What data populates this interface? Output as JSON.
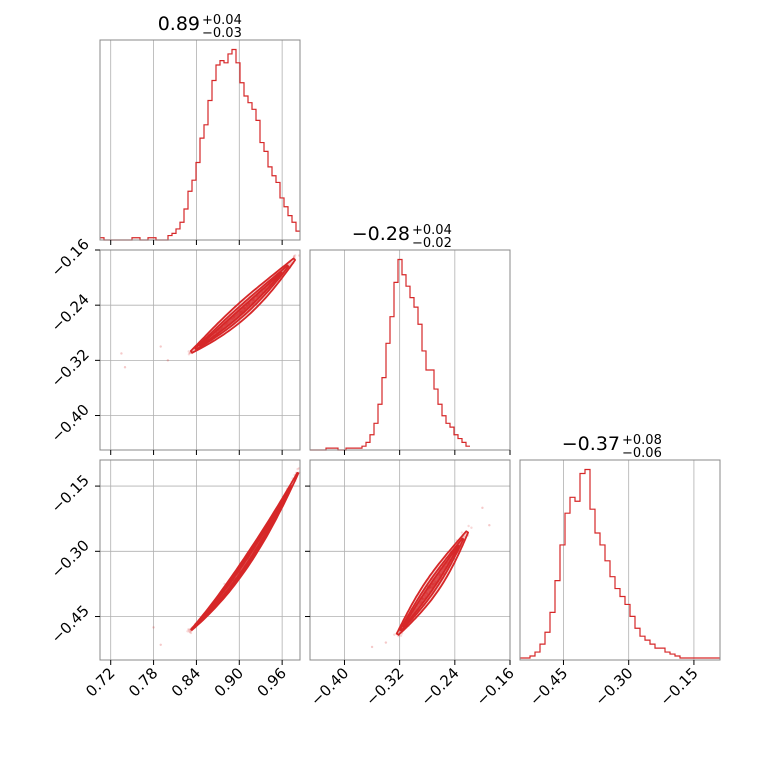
{
  "chart_data": {
    "type": "corner",
    "color": "#d62728",
    "parameters": [
      {
        "title": {
          "median": "0.89",
          "plus": "+0.04",
          "minus": "−0.03"
        },
        "range": [
          0.705,
          0.985
        ],
        "ticks": [
          {
            "value": 0.72,
            "label": "0.72"
          },
          {
            "value": 0.78,
            "label": "0.78"
          },
          {
            "value": 0.84,
            "label": "0.84"
          },
          {
            "value": 0.9,
            "label": "0.90"
          },
          {
            "value": 0.96,
            "label": "0.96"
          }
        ],
        "histogram": {
          "x0": 0.705,
          "bin_width": 0.0056,
          "counts": [
            1,
            0,
            0,
            0,
            0,
            0,
            0,
            0,
            1,
            1,
            0,
            0,
            1,
            1,
            0,
            0,
            0,
            2,
            3,
            5,
            8,
            14,
            22,
            27,
            35,
            46,
            52,
            63,
            72,
            79,
            81,
            80,
            84,
            86,
            80,
            71,
            65,
            62,
            59,
            54,
            44,
            40,
            33,
            29,
            26,
            19,
            15,
            11,
            8,
            4
          ]
        }
      },
      {
        "title": {
          "median": "−0.28",
          "plus": "+0.04",
          "minus": "−0.02"
        },
        "range": [
          -0.45,
          -0.16
        ],
        "ticks": [
          {
            "value": -0.4,
            "label": "−0.40"
          },
          {
            "value": -0.32,
            "label": "−0.32"
          },
          {
            "value": -0.24,
            "label": "−0.24"
          },
          {
            "value": -0.16,
            "label": "−0.16"
          }
        ],
        "histogram": {
          "x0": -0.45,
          "bin_width": 0.0058,
          "counts": [
            0,
            0,
            0,
            0,
            1,
            1,
            1,
            0,
            0,
            1,
            1,
            1,
            1,
            2,
            4,
            8,
            14,
            24,
            38,
            56,
            70,
            88,
            100,
            92,
            86,
            80,
            75,
            66,
            52,
            42,
            42,
            32,
            24,
            18,
            14,
            12,
            8,
            6,
            4,
            2
          ]
        }
      },
      {
        "title": {
          "median": "−0.37",
          "plus": "+0.08",
          "minus": "−0.06"
        },
        "range": [
          -0.55,
          -0.09
        ],
        "ticks": [
          {
            "value": -0.45,
            "label": "−0.45"
          },
          {
            "value": -0.3,
            "label": "−0.30"
          },
          {
            "value": -0.15,
            "label": "−0.15"
          }
        ],
        "histogram": {
          "x0": -0.55,
          "bin_width": 0.0115,
          "counts": [
            1,
            1,
            2,
            4,
            8,
            14,
            24,
            40,
            58,
            74,
            82,
            80,
            94,
            96,
            76,
            64,
            58,
            50,
            42,
            36,
            32,
            28,
            22,
            16,
            12,
            10,
            8,
            6,
            6,
            4,
            3,
            2,
            1,
            1,
            1,
            1,
            1,
            1,
            1,
            1
          ]
        }
      }
    ],
    "pairs": [
      {
        "x_param": 0,
        "y_param": 1,
        "relation": {
          "x": [
            0.83,
            0.98
          ],
          "y": [
            -0.31,
            -0.17
          ],
          "curvature": 0.2
        },
        "contour_widths": [
          0.022,
          0.014,
          0.007
        ],
        "outliers": [
          {
            "x": 0.735,
            "y": -0.31
          },
          {
            "x": 0.74,
            "y": -0.33
          },
          {
            "x": 0.79,
            "y": -0.3
          },
          {
            "x": 0.8,
            "y": -0.32
          }
        ]
      },
      {
        "x_param": 0,
        "y_param": 2,
        "relation": {
          "x": [
            0.83,
            0.985
          ],
          "y": [
            -0.485,
            -0.11
          ],
          "curvature": 0.35
        },
        "contour_widths": [
          0.018,
          0.012,
          0.006
        ],
        "outliers": [
          {
            "x": 0.79,
            "y": -0.515
          },
          {
            "x": 0.78,
            "y": -0.475
          }
        ]
      },
      {
        "x_param": 1,
        "y_param": 2,
        "relation": {
          "x": [
            -0.325,
            -0.22
          ],
          "y": [
            -0.495,
            -0.25
          ],
          "curvature": 0.1
        },
        "contour_widths": [
          0.035,
          0.022,
          0.011
        ],
        "outliers": [
          {
            "x": -0.36,
            "y": -0.52
          },
          {
            "x": -0.34,
            "y": -0.51
          },
          {
            "x": -0.2,
            "y": -0.2
          },
          {
            "x": -0.19,
            "y": -0.24
          }
        ]
      }
    ],
    "grid": true
  }
}
